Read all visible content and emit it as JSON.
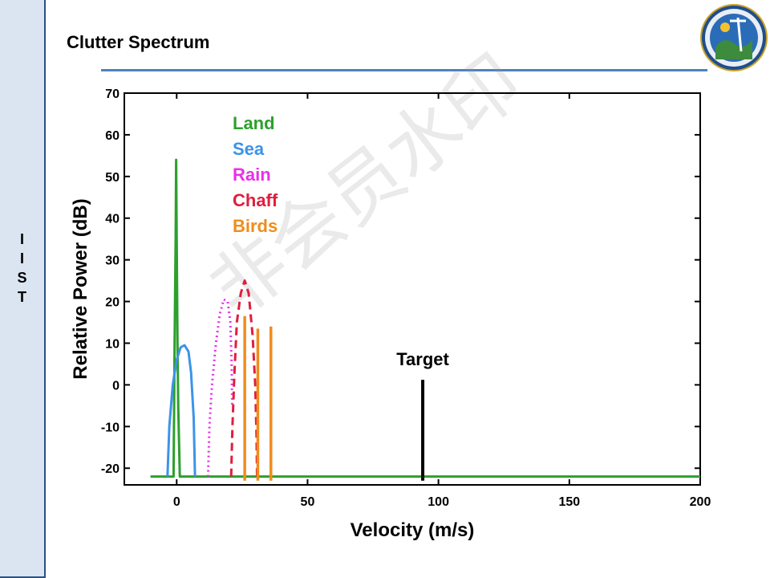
{
  "slide": {
    "title": "Clutter Spectrum",
    "sidebar_letters": [
      "I",
      "I",
      "S",
      "T"
    ],
    "watermark": "非会员水印",
    "accent_color": "#4f81bd"
  },
  "chart_data": {
    "type": "line",
    "xlabel": "Velocity (m/s)",
    "ylabel": "Relative Power (dB)",
    "xlim": [
      -20,
      200
    ],
    "ylim": [
      -24,
      70
    ],
    "xticks": [
      0,
      50,
      100,
      150,
      200
    ],
    "yticks": [
      -20,
      -10,
      0,
      10,
      20,
      30,
      40,
      50,
      60,
      70
    ],
    "grid": false,
    "legend_position": "top-left",
    "series": [
      {
        "name": "Land",
        "color": "#2ca02c",
        "style": "solid",
        "points": [
          [
            -10,
            -22
          ],
          [
            -1.2,
            -22
          ],
          [
            -0.8,
            10
          ],
          [
            -0.4,
            35
          ],
          [
            -0.2,
            54
          ],
          [
            0,
            35
          ],
          [
            0.3,
            10
          ],
          [
            0.6,
            -5
          ],
          [
            1.2,
            -22
          ],
          [
            200,
            -22
          ]
        ]
      },
      {
        "name": "Sea",
        "color": "#3c93e8",
        "style": "solid",
        "points": [
          [
            -3.5,
            -22
          ],
          [
            -2.8,
            -10
          ],
          [
            -1.5,
            0
          ],
          [
            0,
            6
          ],
          [
            1.5,
            9
          ],
          [
            3,
            9.5
          ],
          [
            4.5,
            8
          ],
          [
            5.5,
            3
          ],
          [
            6.5,
            -8
          ],
          [
            7,
            -22
          ]
        ]
      },
      {
        "name": "Rain",
        "color": "#e830e8",
        "style": "dotted",
        "points": [
          [
            12,
            -22
          ],
          [
            12.5,
            -10
          ],
          [
            13.5,
            0
          ],
          [
            15,
            10
          ],
          [
            16.5,
            17
          ],
          [
            18,
            20.5
          ],
          [
            19.5,
            20
          ],
          [
            20.5,
            15
          ],
          [
            21,
            5
          ],
          [
            21.2,
            -5
          ]
        ]
      },
      {
        "name": "Chaff",
        "color": "#e01e3c",
        "style": "dashed",
        "points": [
          [
            20.8,
            -22
          ],
          [
            21.3,
            -10
          ],
          [
            22,
            2
          ],
          [
            23,
            15
          ],
          [
            24.5,
            22
          ],
          [
            26,
            25
          ],
          [
            27.5,
            22
          ],
          [
            29,
            12
          ],
          [
            30,
            0
          ],
          [
            30.5,
            -12
          ],
          [
            30.7,
            -22
          ]
        ]
      },
      {
        "name": "Birds",
        "color": "#f08c1c",
        "style": "bars",
        "bars": [
          [
            26,
            16.5
          ],
          [
            31,
            13.5
          ],
          [
            36,
            14
          ]
        ]
      }
    ],
    "annotations": [
      {
        "label": "Target",
        "x": 94,
        "value": 1.2
      }
    ],
    "target_color": "#000000"
  }
}
